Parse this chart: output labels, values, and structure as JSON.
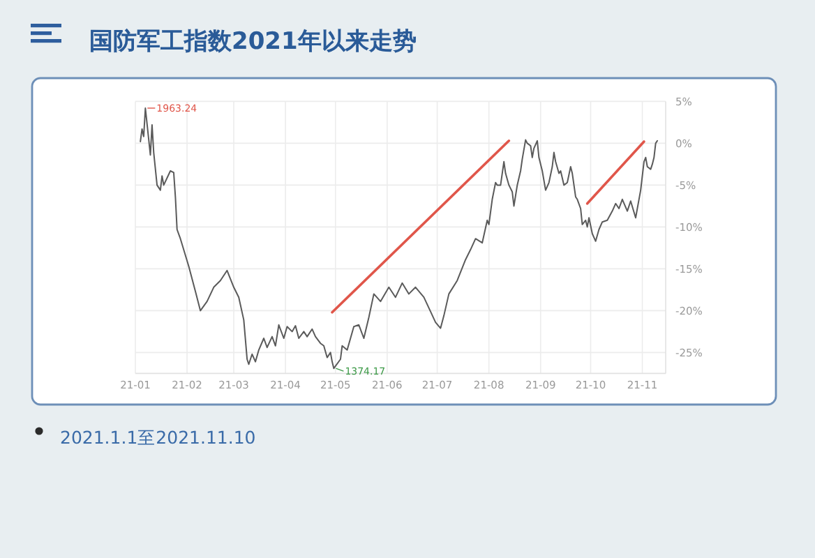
{
  "chart_data": {
    "type": "line",
    "title": "国防军工指数2021年以来走势",
    "x": [
      "2021-01-04",
      "2021-01-05",
      "2021-01-06",
      "2021-01-07",
      "2021-01-10",
      "2021-01-11",
      "2021-01-12",
      "2021-01-14",
      "2021-01-16",
      "2021-01-17",
      "2021-01-18",
      "2021-01-22",
      "2021-01-24",
      "2021-01-25",
      "2021-01-26",
      "2021-01-28",
      "2021-02-02",
      "2021-02-06",
      "2021-02-09",
      "2021-02-13",
      "2021-02-17",
      "2021-02-21",
      "2021-02-25",
      "2021-03-01",
      "2021-03-04",
      "2021-03-07",
      "2021-03-09",
      "2021-03-10",
      "2021-03-12",
      "2021-03-14",
      "2021-03-16",
      "2021-03-19",
      "2021-03-21",
      "2021-03-24",
      "2021-03-26",
      "2021-03-28",
      "2021-03-31",
      "2021-04-02",
      "2021-04-05",
      "2021-04-07",
      "2021-04-09",
      "2021-04-12",
      "2021-04-14",
      "2021-04-17",
      "2021-04-19",
      "2021-04-22",
      "2021-04-24",
      "2021-04-26",
      "2021-04-28",
      "2021-04-29",
      "2021-04-30",
      "2021-05-04",
      "2021-05-05",
      "2021-05-08",
      "2021-05-10",
      "2021-05-12",
      "2021-05-15",
      "2021-05-18",
      "2021-05-21",
      "2021-05-24",
      "2021-05-28",
      "2021-06-02",
      "2021-06-06",
      "2021-06-10",
      "2021-06-14",
      "2021-06-18",
      "2021-06-23",
      "2021-06-27",
      "2021-06-30",
      "2021-07-03",
      "2021-07-05",
      "2021-07-08",
      "2021-07-13",
      "2021-07-18",
      "2021-07-21",
      "2021-07-24",
      "2021-07-28",
      "2021-07-31",
      "2021-08-01",
      "2021-08-03",
      "2021-08-05",
      "2021-08-06",
      "2021-08-08",
      "2021-08-10",
      "2021-08-11",
      "2021-08-13",
      "2021-08-15",
      "2021-08-16",
      "2021-08-18",
      "2021-08-20",
      "2021-08-21",
      "2021-08-23",
      "2021-08-24",
      "2021-08-26",
      "2021-08-27",
      "2021-08-28",
      "2021-08-30",
      "2021-08-31",
      "2021-09-02",
      "2021-09-04",
      "2021-09-06",
      "2021-09-08",
      "2021-09-09",
      "2021-09-10",
      "2021-09-12",
      "2021-09-13",
      "2021-09-15",
      "2021-09-17",
      "2021-09-19",
      "2021-09-20",
      "2021-09-22",
      "2021-09-23",
      "2021-09-25",
      "2021-09-26",
      "2021-09-28",
      "2021-09-29",
      "2021-09-30",
      "2021-10-02",
      "2021-10-04",
      "2021-10-06",
      "2021-10-08",
      "2021-10-11",
      "2021-10-14",
      "2021-10-16",
      "2021-10-18",
      "2021-10-20",
      "2021-10-23",
      "2021-10-25",
      "2021-10-28",
      "2021-10-31",
      "2021-11-02",
      "2021-11-03",
      "2021-11-04",
      "2021-11-06",
      "2021-11-07",
      "2021-11-08",
      "2021-11-09",
      "2021-11-10"
    ],
    "series": [
      {
        "color": "#5a5a5a",
        "values": [
          0.2,
          1.7,
          0.8,
          4.2,
          -1.4,
          2.2,
          -1.1,
          -5.0,
          -5.6,
          -3.9,
          -5.0,
          -3.3,
          -3.5,
          -6.4,
          -10.3,
          -11.4,
          -14.7,
          -17.7,
          -20.0,
          -18.9,
          -17.2,
          -16.4,
          -15.2,
          -17.2,
          -18.4,
          -21.1,
          -25.8,
          -26.4,
          -25.2,
          -26.1,
          -24.7,
          -23.3,
          -24.4,
          -23.1,
          -24.2,
          -21.7,
          -23.3,
          -21.9,
          -22.5,
          -21.8,
          -23.3,
          -22.5,
          -23.1,
          -22.2,
          -23.1,
          -23.9,
          -24.2,
          -25.6,
          -25.0,
          -26.1,
          -26.9,
          -25.8,
          -24.2,
          -24.7,
          -23.3,
          -21.9,
          -21.7,
          -23.3,
          -20.8,
          -18.0,
          -18.9,
          -17.2,
          -18.4,
          -16.7,
          -18.0,
          -17.2,
          -18.4,
          -20.1,
          -21.4,
          -22.1,
          -20.6,
          -18.0,
          -16.4,
          -13.9,
          -12.7,
          -11.4,
          -11.9,
          -9.2,
          -9.7,
          -6.7,
          -4.7,
          -5.0,
          -5.0,
          -2.2,
          -3.6,
          -5.0,
          -5.8,
          -7.5,
          -5.0,
          -3.3,
          -1.9,
          0.4,
          0.0,
          -0.3,
          -1.7,
          -0.6,
          0.3,
          -1.7,
          -3.3,
          -5.6,
          -4.7,
          -2.8,
          -1.1,
          -2.2,
          -3.6,
          -3.3,
          -5.0,
          -4.7,
          -2.8,
          -3.6,
          -6.4,
          -6.7,
          -7.8,
          -9.7,
          -9.2,
          -10.0,
          -8.9,
          -10.8,
          -11.7,
          -10.3,
          -9.4,
          -9.2,
          -8.1,
          -7.2,
          -7.8,
          -6.7,
          -8.1,
          -6.9,
          -8.9,
          -5.6,
          -2.2,
          -1.7,
          -2.8,
          -3.1,
          -2.5,
          -1.7,
          0.0,
          0.3
        ]
      },
      {
        "type": "line",
        "color": "#e0564a",
        "x": [
          "2021-04-29",
          "2021-08-13"
        ],
        "values": [
          -20.2,
          0.3
        ]
      },
      {
        "type": "line",
        "color": "#e0564a",
        "x": [
          "2021-09-29",
          "2021-11-02"
        ],
        "values": [
          -7.2,
          0.2
        ]
      }
    ],
    "xlim": [
      "2021-01-01",
      "2021-11-15"
    ],
    "xticks": [
      {
        "value": "2021-01-01",
        "label": "21-01"
      },
      {
        "value": "2021-02-01",
        "label": "21-02"
      },
      {
        "value": "2021-03-01",
        "label": "21-03"
      },
      {
        "value": "2021-04-01",
        "label": "21-04"
      },
      {
        "value": "2021-05-01",
        "label": "21-05"
      },
      {
        "value": "2021-06-01",
        "label": "21-06"
      },
      {
        "value": "2021-07-01",
        "label": "21-07"
      },
      {
        "value": "2021-08-01",
        "label": "21-08"
      },
      {
        "value": "2021-09-01",
        "label": "21-09"
      },
      {
        "value": "2021-10-01",
        "label": "21-10"
      },
      {
        "value": "2021-11-01",
        "label": "21-11"
      }
    ],
    "ylim": [
      -27.5,
      5
    ],
    "yticks": [
      {
        "value": 5,
        "label": "5%"
      },
      {
        "value": 0,
        "label": "0%"
      },
      {
        "value": -5,
        "label": "-5%"
      },
      {
        "value": -10,
        "label": "-10%"
      },
      {
        "value": -15,
        "label": "-15%"
      },
      {
        "value": -20,
        "label": "-20%"
      },
      {
        "value": -25,
        "label": "-25%"
      }
    ],
    "grid": true,
    "annotations": [
      {
        "text": "1963.24",
        "x": "2021-01-07",
        "y": 4.2
      },
      {
        "text": "1374.17",
        "x": "2021-04-30",
        "y": -26.9
      },
      "2021.1.1至2021.11.10"
    ]
  }
}
